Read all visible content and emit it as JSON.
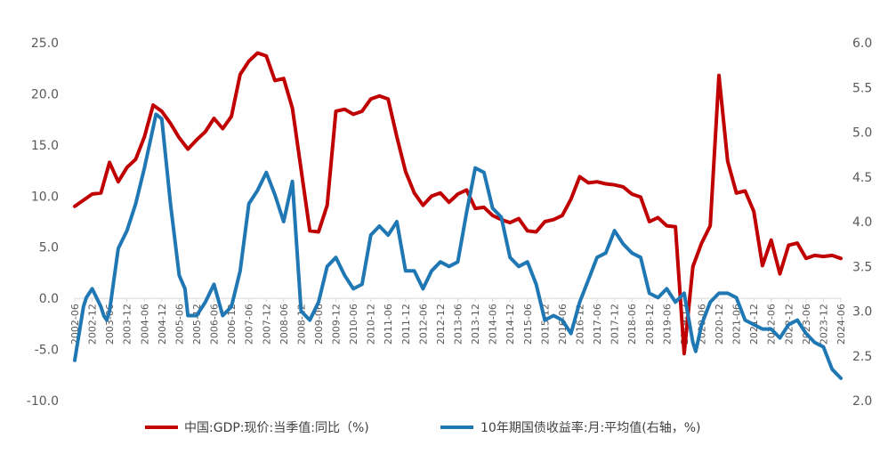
{
  "chart_data": {
    "type": "line",
    "title": "",
    "xlabel": "",
    "ylabel": "",
    "y_left": {
      "min": -10,
      "max": 25,
      "step": 5,
      "labels": [
        "-10.0",
        "-5.0",
        "0.0",
        "5.0",
        "10.0",
        "15.0",
        "20.0",
        "25.0"
      ]
    },
    "y_right": {
      "min": 2.0,
      "max": 6.0,
      "step": 0.5,
      "labels": [
        "2.0",
        "2.5",
        "3.0",
        "3.5",
        "4.0",
        "4.5",
        "5.0",
        "5.5",
        "6.0"
      ]
    },
    "x": {
      "start": "2002-06",
      "end": "2024-06",
      "tick_labels": [
        "2002-06",
        "2002-12",
        "2003-06",
        "2003-12",
        "2004-06",
        "2004-12",
        "2005-06",
        "2005-12",
        "2006-06",
        "2006-12",
        "2007-06",
        "2007-12",
        "2008-06",
        "2008-12",
        "2009-06",
        "2009-12",
        "2010-06",
        "2010-12",
        "2011-06",
        "2011-12",
        "2012-06",
        "2012-12",
        "2013-06",
        "2013-12",
        "2014-06",
        "2014-12",
        "2015-06",
        "2015-12",
        "2016-06",
        "2016-12",
        "2017-06",
        "2017-12",
        "2018-06",
        "2018-12",
        "2019-06",
        "2019-12",
        "2020-06",
        "2020-12",
        "2021-06",
        "2021-12",
        "2022-06",
        "2022-12",
        "2023-06",
        "2023-12",
        "2024-06"
      ]
    },
    "grid": false,
    "legend": "bottom",
    "series": [
      {
        "name": "中国:GDP:现价:当季值:同比（%)",
        "axis": "left",
        "color": "#C00000",
        "points": [
          [
            "2002-06",
            9.0
          ],
          [
            "2002-12",
            10.2
          ],
          [
            "2003-03",
            10.3
          ],
          [
            "2003-06",
            13.3
          ],
          [
            "2003-09",
            11.4
          ],
          [
            "2003-12",
            12.8
          ],
          [
            "2004-03",
            13.6
          ],
          [
            "2004-06",
            15.8
          ],
          [
            "2004-09",
            18.9
          ],
          [
            "2004-12",
            18.3
          ],
          [
            "2005-03",
            17.1
          ],
          [
            "2005-06",
            15.7
          ],
          [
            "2005-09",
            14.6
          ],
          [
            "2005-12",
            15.5
          ],
          [
            "2006-03",
            16.3
          ],
          [
            "2006-06",
            17.6
          ],
          [
            "2006-09",
            16.6
          ],
          [
            "2006-12",
            17.8
          ],
          [
            "2007-03",
            21.9
          ],
          [
            "2007-06",
            23.2
          ],
          [
            "2007-09",
            24.0
          ],
          [
            "2007-12",
            23.7
          ],
          [
            "2008-03",
            21.3
          ],
          [
            "2008-06",
            21.5
          ],
          [
            "2008-09",
            18.6
          ],
          [
            "2008-12",
            12.6
          ],
          [
            "2009-03",
            6.6
          ],
          [
            "2009-06",
            6.5
          ],
          [
            "2009-09",
            9.1
          ],
          [
            "2009-12",
            18.3
          ],
          [
            "2010-03",
            18.5
          ],
          [
            "2010-06",
            18.0
          ],
          [
            "2010-09",
            18.3
          ],
          [
            "2010-12",
            19.5
          ],
          [
            "2011-03",
            19.8
          ],
          [
            "2011-06",
            19.5
          ],
          [
            "2011-09",
            15.8
          ],
          [
            "2011-12",
            12.4
          ],
          [
            "2012-03",
            10.3
          ],
          [
            "2012-06",
            9.1
          ],
          [
            "2012-09",
            10.0
          ],
          [
            "2012-12",
            10.3
          ],
          [
            "2013-03",
            9.4
          ],
          [
            "2013-06",
            10.2
          ],
          [
            "2013-09",
            10.6
          ],
          [
            "2013-12",
            8.8
          ],
          [
            "2014-03",
            8.9
          ],
          [
            "2014-06",
            8.1
          ],
          [
            "2014-09",
            7.7
          ],
          [
            "2014-12",
            7.4
          ],
          [
            "2015-03",
            7.8
          ],
          [
            "2015-06",
            6.6
          ],
          [
            "2015-09",
            6.5
          ],
          [
            "2015-12",
            7.5
          ],
          [
            "2016-03",
            7.7
          ],
          [
            "2016-06",
            8.1
          ],
          [
            "2016-09",
            9.7
          ],
          [
            "2016-12",
            11.9
          ],
          [
            "2017-03",
            11.3
          ],
          [
            "2017-06",
            11.4
          ],
          [
            "2017-09",
            11.2
          ],
          [
            "2017-12",
            11.1
          ],
          [
            "2018-03",
            10.9
          ],
          [
            "2018-06",
            10.2
          ],
          [
            "2018-09",
            9.9
          ],
          [
            "2018-12",
            7.5
          ],
          [
            "2019-03",
            7.9
          ],
          [
            "2019-06",
            7.1
          ],
          [
            "2019-09",
            7.0
          ],
          [
            "2019-12",
            -5.4
          ],
          [
            "2020-03",
            3.1
          ],
          [
            "2020-06",
            5.4
          ],
          [
            "2020-09",
            7.1
          ],
          [
            "2020-12",
            21.8
          ],
          [
            "2021-03",
            13.4
          ],
          [
            "2021-06",
            10.3
          ],
          [
            "2021-09",
            10.5
          ],
          [
            "2021-12",
            8.5
          ],
          [
            "2022-03",
            3.2
          ],
          [
            "2022-06",
            5.7
          ],
          [
            "2022-09",
            2.4
          ],
          [
            "2022-12",
            5.2
          ],
          [
            "2023-03",
            5.4
          ],
          [
            "2023-06",
            3.9
          ],
          [
            "2023-09",
            4.2
          ],
          [
            "2023-12",
            4.1
          ],
          [
            "2024-03",
            4.2
          ],
          [
            "2024-06",
            3.9
          ]
        ]
      },
      {
        "name": "10年期国债收益率:月:平均值(右轴，%)",
        "axis": "right",
        "color": "#1F77B4",
        "points": [
          [
            "2002-06",
            2.45
          ],
          [
            "2002-09",
            3.05
          ],
          [
            "2002-10",
            3.15
          ],
          [
            "2002-12",
            3.25
          ],
          [
            "2003-03",
            3.05
          ],
          [
            "2003-04",
            2.95
          ],
          [
            "2003-05",
            2.9
          ],
          [
            "2003-06",
            3.0
          ],
          [
            "2003-09",
            3.7
          ],
          [
            "2003-12",
            3.9
          ],
          [
            "2004-03",
            4.2
          ],
          [
            "2004-06",
            4.6
          ],
          [
            "2004-09",
            5.05
          ],
          [
            "2004-10",
            5.2
          ],
          [
            "2004-12",
            5.15
          ],
          [
            "2005-03",
            4.2
          ],
          [
            "2005-06",
            3.4
          ],
          [
            "2005-08",
            3.25
          ],
          [
            "2005-09",
            2.95
          ],
          [
            "2005-12",
            2.95
          ],
          [
            "2006-03",
            3.1
          ],
          [
            "2006-06",
            3.3
          ],
          [
            "2006-09",
            2.95
          ],
          [
            "2006-12",
            3.05
          ],
          [
            "2007-03",
            3.45
          ],
          [
            "2007-06",
            4.2
          ],
          [
            "2007-09",
            4.35
          ],
          [
            "2007-12",
            4.55
          ],
          [
            "2008-03",
            4.3
          ],
          [
            "2008-06",
            4.0
          ],
          [
            "2008-09",
            4.45
          ],
          [
            "2008-12",
            3.0
          ],
          [
            "2009-03",
            2.9
          ],
          [
            "2009-06",
            3.1
          ],
          [
            "2009-09",
            3.5
          ],
          [
            "2009-12",
            3.6
          ],
          [
            "2010-03",
            3.4
          ],
          [
            "2010-06",
            3.25
          ],
          [
            "2010-09",
            3.3
          ],
          [
            "2010-12",
            3.85
          ],
          [
            "2011-03",
            3.95
          ],
          [
            "2011-06",
            3.85
          ],
          [
            "2011-09",
            4.0
          ],
          [
            "2011-12",
            3.45
          ],
          [
            "2012-03",
            3.45
          ],
          [
            "2012-06",
            3.25
          ],
          [
            "2012-09",
            3.45
          ],
          [
            "2012-12",
            3.55
          ],
          [
            "2013-03",
            3.5
          ],
          [
            "2013-06",
            3.55
          ],
          [
            "2013-09",
            4.1
          ],
          [
            "2013-12",
            4.6
          ],
          [
            "2014-03",
            4.55
          ],
          [
            "2014-06",
            4.15
          ],
          [
            "2014-09",
            4.05
          ],
          [
            "2014-12",
            3.6
          ],
          [
            "2015-03",
            3.5
          ],
          [
            "2015-06",
            3.55
          ],
          [
            "2015-09",
            3.3
          ],
          [
            "2015-12",
            2.9
          ],
          [
            "2016-03",
            2.95
          ],
          [
            "2016-06",
            2.9
          ],
          [
            "2016-09",
            2.75
          ],
          [
            "2016-12",
            3.1
          ],
          [
            "2017-03",
            3.35
          ],
          [
            "2017-06",
            3.6
          ],
          [
            "2017-09",
            3.65
          ],
          [
            "2017-12",
            3.9
          ],
          [
            "2018-03",
            3.75
          ],
          [
            "2018-06",
            3.65
          ],
          [
            "2018-09",
            3.6
          ],
          [
            "2018-12",
            3.2
          ],
          [
            "2019-03",
            3.15
          ],
          [
            "2019-06",
            3.25
          ],
          [
            "2019-09",
            3.1
          ],
          [
            "2019-12",
            3.2
          ],
          [
            "2020-03",
            2.65
          ],
          [
            "2020-04",
            2.55
          ],
          [
            "2020-06",
            2.85
          ],
          [
            "2020-09",
            3.1
          ],
          [
            "2020-12",
            3.2
          ],
          [
            "2021-03",
            3.2
          ],
          [
            "2021-06",
            3.15
          ],
          [
            "2021-09",
            2.9
          ],
          [
            "2021-12",
            2.85
          ],
          [
            "2022-03",
            2.8
          ],
          [
            "2022-06",
            2.8
          ],
          [
            "2022-09",
            2.7
          ],
          [
            "2022-12",
            2.85
          ],
          [
            "2023-03",
            2.9
          ],
          [
            "2023-06",
            2.75
          ],
          [
            "2023-09",
            2.65
          ],
          [
            "2023-12",
            2.6
          ],
          [
            "2024-03",
            2.35
          ],
          [
            "2024-06",
            2.25
          ]
        ]
      }
    ]
  }
}
